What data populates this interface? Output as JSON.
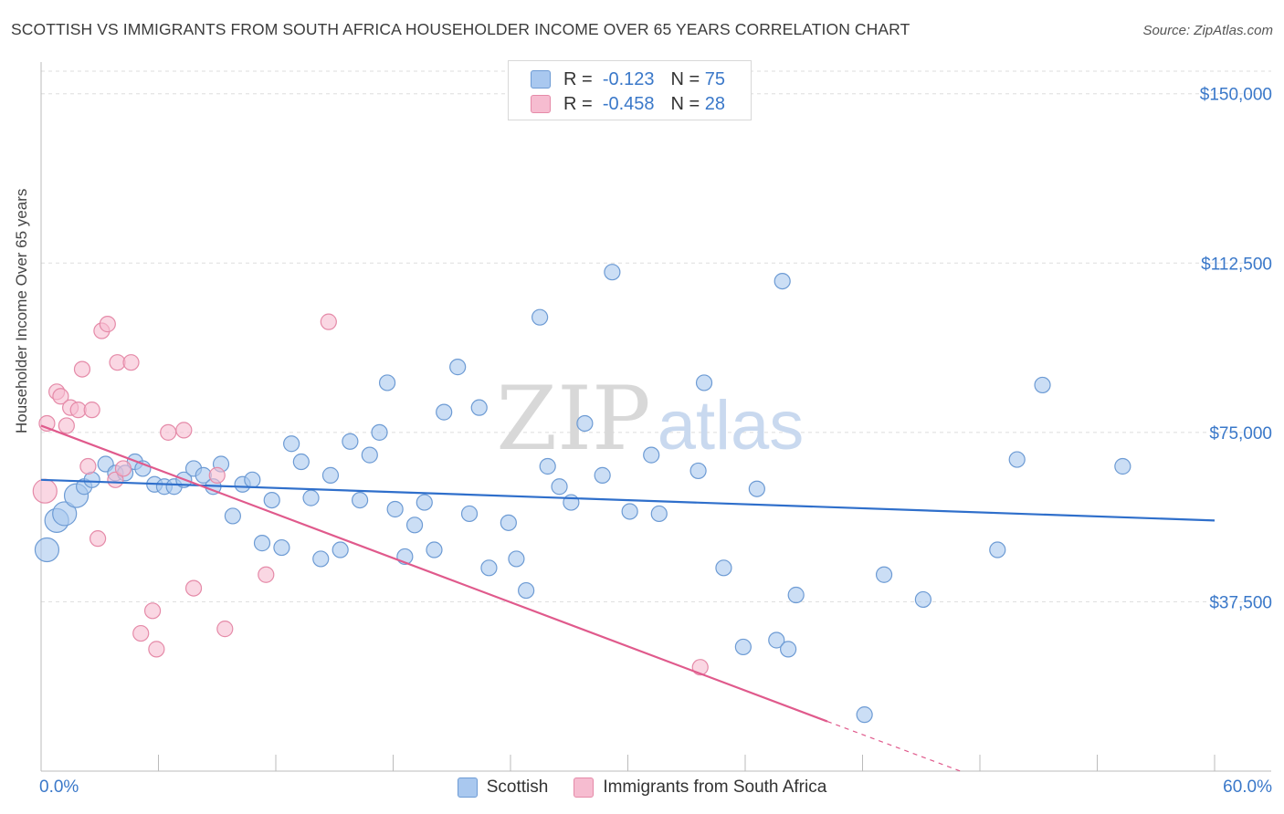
{
  "title": "SCOTTISH VS IMMIGRANTS FROM SOUTH AFRICA HOUSEHOLDER INCOME OVER 65 YEARS CORRELATION CHART",
  "source": "Source: ZipAtlas.com",
  "watermark": {
    "zip": "ZIP",
    "atlas": "atlas"
  },
  "colors": {
    "blue_fill": "#a9c8ef",
    "blue_stroke": "#6d9bd4",
    "blue_line": "#2f6fcb",
    "pink_fill": "#f6bcd0",
    "pink_stroke": "#e58aa8",
    "pink_line": "#e05a8c",
    "axis_text": "#3a78c9",
    "grid": "#dddddd"
  },
  "legend_top": [
    {
      "r_label": "R =",
      "r_value": "-0.123",
      "n_label": "N =",
      "n_value": "75",
      "color": "#a9c8ef"
    },
    {
      "r_label": "R =",
      "r_value": "-0.458",
      "n_label": "N =",
      "n_value": "28",
      "color": "#f6bcd0"
    }
  ],
  "legend_bottom": [
    {
      "label": "Scottish",
      "color": "#a9c8ef"
    },
    {
      "label": "Immigrants from South Africa",
      "color": "#f6bcd0"
    }
  ],
  "chart_data": {
    "type": "scatter",
    "title": "SCOTTISH VS IMMIGRANTS FROM SOUTH AFRICA HOUSEHOLDER INCOME OVER 65 YEARS CORRELATION CHART",
    "xlabel": "",
    "ylabel": "Householder Income Over 65 years",
    "xlim": [
      0,
      60
    ],
    "ylim": [
      0,
      155000
    ],
    "x_tick_labels": [
      "0.0%",
      "60.0%"
    ],
    "y_ticks": [
      37500,
      75000,
      112500,
      150000
    ],
    "y_tick_labels": [
      "$37,500",
      "$75,000",
      "$112,500",
      "$150,000"
    ],
    "series": [
      {
        "name": "Scottish",
        "r": -0.123,
        "n": 75,
        "trend": {
          "x": [
            0,
            60
          ],
          "y": [
            64500,
            55500
          ]
        },
        "points": [
          {
            "x": 0.3,
            "y": 49000,
            "big": true
          },
          {
            "x": 0.8,
            "y": 55500,
            "big": true
          },
          {
            "x": 1.2,
            "y": 57000,
            "big": true
          },
          {
            "x": 1.8,
            "y": 61000,
            "big": true
          },
          {
            "x": 2.2,
            "y": 63000
          },
          {
            "x": 2.6,
            "y": 64500
          },
          {
            "x": 3.3,
            "y": 68000
          },
          {
            "x": 3.8,
            "y": 66000
          },
          {
            "x": 4.3,
            "y": 66000
          },
          {
            "x": 4.8,
            "y": 68500
          },
          {
            "x": 5.2,
            "y": 67000
          },
          {
            "x": 5.8,
            "y": 63500
          },
          {
            "x": 6.3,
            "y": 63000
          },
          {
            "x": 6.8,
            "y": 63000
          },
          {
            "x": 7.3,
            "y": 64500
          },
          {
            "x": 7.8,
            "y": 67000
          },
          {
            "x": 8.3,
            "y": 65500
          },
          {
            "x": 8.8,
            "y": 63000
          },
          {
            "x": 9.2,
            "y": 68000
          },
          {
            "x": 9.8,
            "y": 56500
          },
          {
            "x": 10.3,
            "y": 63500
          },
          {
            "x": 10.8,
            "y": 64500
          },
          {
            "x": 11.3,
            "y": 50500
          },
          {
            "x": 11.8,
            "y": 60000
          },
          {
            "x": 12.3,
            "y": 49500
          },
          {
            "x": 12.8,
            "y": 72500
          },
          {
            "x": 13.3,
            "y": 68500
          },
          {
            "x": 13.8,
            "y": 60500
          },
          {
            "x": 14.3,
            "y": 47000
          },
          {
            "x": 14.8,
            "y": 65500
          },
          {
            "x": 15.3,
            "y": 49000
          },
          {
            "x": 15.8,
            "y": 73000
          },
          {
            "x": 16.3,
            "y": 60000
          },
          {
            "x": 16.8,
            "y": 70000
          },
          {
            "x": 17.3,
            "y": 75000
          },
          {
            "x": 17.7,
            "y": 86000
          },
          {
            "x": 18.1,
            "y": 58000
          },
          {
            "x": 18.6,
            "y": 47500
          },
          {
            "x": 19.1,
            "y": 54500
          },
          {
            "x": 19.6,
            "y": 59500
          },
          {
            "x": 20.1,
            "y": 49000
          },
          {
            "x": 20.6,
            "y": 79500
          },
          {
            "x": 21.3,
            "y": 89500
          },
          {
            "x": 21.9,
            "y": 57000
          },
          {
            "x": 22.4,
            "y": 80500
          },
          {
            "x": 22.9,
            "y": 45000
          },
          {
            "x": 23.9,
            "y": 55000
          },
          {
            "x": 24.3,
            "y": 47000
          },
          {
            "x": 24.8,
            "y": 40000
          },
          {
            "x": 25.5,
            "y": 100500
          },
          {
            "x": 25.9,
            "y": 67500
          },
          {
            "x": 26.5,
            "y": 63000
          },
          {
            "x": 27.1,
            "y": 59500
          },
          {
            "x": 27.8,
            "y": 77000
          },
          {
            "x": 28.7,
            "y": 65500
          },
          {
            "x": 29.2,
            "y": 110500
          },
          {
            "x": 30.1,
            "y": 57500
          },
          {
            "x": 31.2,
            "y": 70000
          },
          {
            "x": 31.6,
            "y": 57000
          },
          {
            "x": 33.6,
            "y": 66500
          },
          {
            "x": 33.9,
            "y": 86000
          },
          {
            "x": 34.9,
            "y": 45000
          },
          {
            "x": 35.9,
            "y": 27500
          },
          {
            "x": 36.6,
            "y": 62500
          },
          {
            "x": 37.6,
            "y": 29000
          },
          {
            "x": 37.9,
            "y": 108500
          },
          {
            "x": 38.2,
            "y": 27000
          },
          {
            "x": 38.6,
            "y": 39000
          },
          {
            "x": 42.1,
            "y": 12500
          },
          {
            "x": 43.1,
            "y": 43500
          },
          {
            "x": 45.1,
            "y": 38000
          },
          {
            "x": 48.9,
            "y": 49000
          },
          {
            "x": 49.9,
            "y": 69000
          },
          {
            "x": 51.2,
            "y": 85500
          },
          {
            "x": 55.3,
            "y": 67500
          }
        ]
      },
      {
        "name": "Immigrants from South Africa",
        "r": -0.458,
        "n": 28,
        "trend": {
          "x": [
            0,
            40.2
          ],
          "y": [
            76500,
            11000
          ]
        },
        "trend_dashed": {
          "x": [
            40.2,
            47
          ],
          "y": [
            11000,
            0
          ]
        },
        "points": [
          {
            "x": 0.2,
            "y": 62000,
            "big": true
          },
          {
            "x": 0.3,
            "y": 77000
          },
          {
            "x": 0.8,
            "y": 84000
          },
          {
            "x": 1.0,
            "y": 83000
          },
          {
            "x": 1.3,
            "y": 76500
          },
          {
            "x": 1.5,
            "y": 80500
          },
          {
            "x": 1.9,
            "y": 80000
          },
          {
            "x": 2.1,
            "y": 89000
          },
          {
            "x": 2.4,
            "y": 67500
          },
          {
            "x": 2.6,
            "y": 80000
          },
          {
            "x": 2.9,
            "y": 51500
          },
          {
            "x": 3.1,
            "y": 97500
          },
          {
            "x": 3.4,
            "y": 99000
          },
          {
            "x": 3.8,
            "y": 64500
          },
          {
            "x": 3.9,
            "y": 90500
          },
          {
            "x": 4.2,
            "y": 67000
          },
          {
            "x": 4.6,
            "y": 90500
          },
          {
            "x": 5.1,
            "y": 30500
          },
          {
            "x": 5.7,
            "y": 35500
          },
          {
            "x": 5.9,
            "y": 27000
          },
          {
            "x": 6.5,
            "y": 75000
          },
          {
            "x": 7.3,
            "y": 75500
          },
          {
            "x": 7.8,
            "y": 40500
          },
          {
            "x": 9.0,
            "y": 65500
          },
          {
            "x": 9.4,
            "y": 31500
          },
          {
            "x": 11.5,
            "y": 43500
          },
          {
            "x": 14.7,
            "y": 99500
          },
          {
            "x": 33.7,
            "y": 23000
          }
        ]
      }
    ]
  }
}
